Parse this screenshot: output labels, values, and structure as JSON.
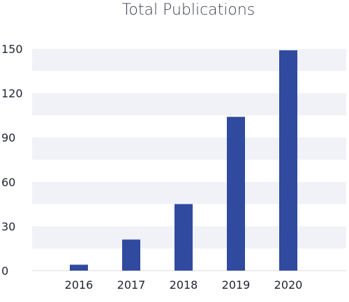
{
  "chart_data": {
    "type": "bar",
    "title": "Total Publications",
    "categories": [
      "2016",
      "2017",
      "2018",
      "2019",
      "2020"
    ],
    "values": [
      4,
      21,
      45,
      104,
      149
    ],
    "ylim": [
      0,
      150
    ],
    "yticks": [
      0,
      30,
      60,
      90,
      120,
      150
    ],
    "xlabel": "",
    "ylabel": "",
    "grid": "alternating horizontal bands",
    "legend": "none",
    "colors": {
      "bar": "#2f4a9e",
      "band": "#f1f2f8",
      "axis": "#d8dae3"
    }
  }
}
